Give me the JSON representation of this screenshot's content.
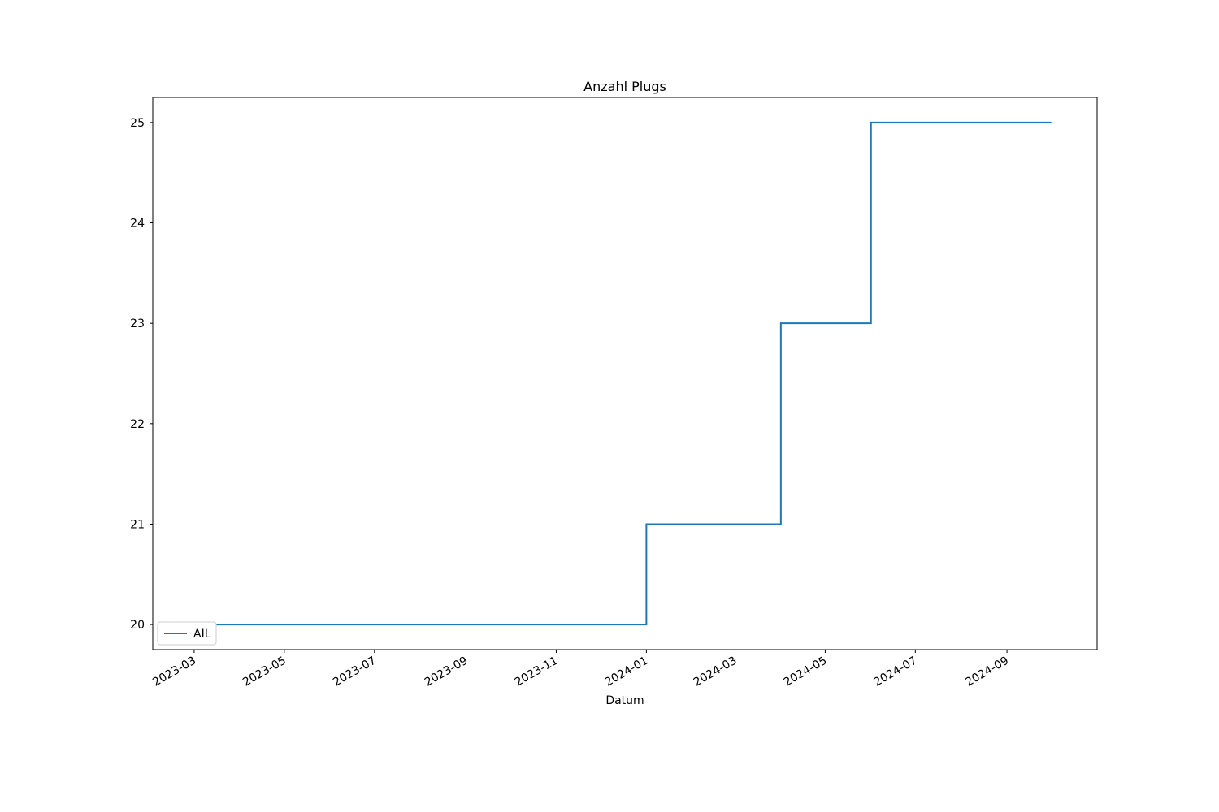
{
  "chart_data": {
    "type": "line",
    "title": "Anzahl Plugs",
    "xlabel": "Datum",
    "x": [
      "2023-03",
      "2024-01",
      "2024-01",
      "2024-04",
      "2024-04",
      "2024-06",
      "2024-06",
      "2024-10"
    ],
    "series": [
      {
        "name": "AIL",
        "color": "#1f77b4",
        "values": [
          20,
          20,
          21,
          21,
          23,
          23,
          25,
          25
        ]
      }
    ],
    "xlim": [
      "2023-02",
      "2024-11"
    ],
    "xticks": [
      "2023-03",
      "2023-05",
      "2023-07",
      "2023-09",
      "2023-11",
      "2024-01",
      "2024-03",
      "2024-05",
      "2024-07",
      "2024-09"
    ],
    "ylim": [
      19.75,
      25.25
    ],
    "yticks": [
      20,
      21,
      22,
      23,
      24,
      25
    ],
    "grid": false,
    "legend": "lower left"
  }
}
